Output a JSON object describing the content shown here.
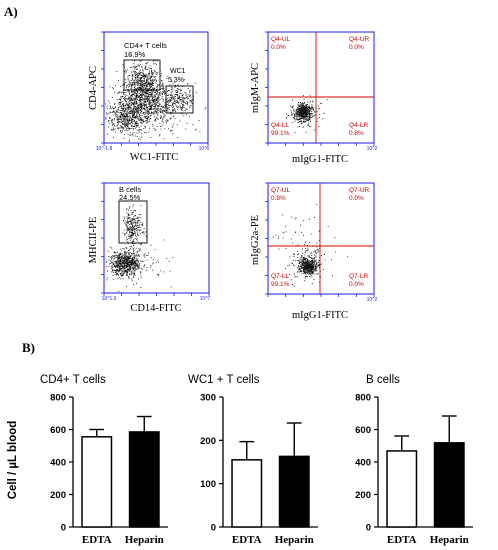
{
  "colors": {
    "flow_axis": "#1a1aff",
    "gate": "#000000",
    "quadrant": "#dd0000",
    "dots": "#111111",
    "bar_axis": "#000000",
    "edta_fill": "#ffffff",
    "heparin_fill": "#000000"
  },
  "panel_a": {
    "label": "A)",
    "plots": [
      {
        "id": "cd4-wc1",
        "type": "scatter-density",
        "y_label": "CD4-APC",
        "x_label": "WC1-FITC",
        "x_tick_labels": [
          "10^-1.8",
          "10^6"
        ],
        "gates": [
          {
            "name": "CD4+ T cells",
            "percent": "16.9%"
          },
          {
            "name": "WC1",
            "percent": "5.3%"
          }
        ]
      },
      {
        "id": "isotype-1",
        "type": "scatter-quadrant",
        "y_label": "mIgM-APC",
        "x_label": "mIgG1-FITC",
        "x_tick_labels": [
          "10^2"
        ],
        "quadrants": [
          {
            "name": "Q4-UL",
            "percent": "0.0%"
          },
          {
            "name": "Q4-UR",
            "percent": "0.0%"
          },
          {
            "name": "Q4-LL",
            "percent": "99.1%"
          },
          {
            "name": "Q4-LR",
            "percent": "0.8%"
          }
        ]
      },
      {
        "id": "mhcii-cd14",
        "type": "scatter-density",
        "y_label": "MHCII-PE",
        "x_label": "CD14-FITC",
        "x_tick_labels": [
          "10^1.9",
          "10^7"
        ],
        "gates": [
          {
            "name": "B cells",
            "percent": "24.5%"
          }
        ]
      },
      {
        "id": "isotype-2",
        "type": "scatter-quadrant",
        "y_label": "mIgG2a-PE",
        "x_label": "mIgG1-FITC",
        "x_tick_labels": [
          "10^2"
        ],
        "quadrants": [
          {
            "name": "Q7-UL",
            "percent": "0.8%"
          },
          {
            "name": "Q7-UR",
            "percent": "0.0%"
          },
          {
            "name": "Q7-LL",
            "percent": "99.1%"
          },
          {
            "name": "Q7-LR",
            "percent": "0.0%"
          }
        ]
      }
    ]
  },
  "panel_b": {
    "label": "B)"
  },
  "chart_data": [
    {
      "type": "bar",
      "title": "CD4+ T cells",
      "ylabel": "Cell / µL blood",
      "categories": [
        "EDTA",
        "Heparin"
      ],
      "values": [
        555,
        585
      ],
      "errors": [
        45,
        95
      ],
      "ylim": [
        0,
        800
      ],
      "yticks": [
        0,
        200,
        400,
        600,
        800
      ],
      "fills": [
        "#ffffff",
        "#000000"
      ]
    },
    {
      "type": "bar",
      "title": "WC1 + T cells",
      "ylabel": "",
      "categories": [
        "EDTA",
        "Heparin"
      ],
      "values": [
        155,
        163
      ],
      "errors": [
        42,
        77
      ],
      "ylim": [
        0,
        300
      ],
      "yticks": [
        0,
        100,
        200,
        300
      ],
      "fills": [
        "#ffffff",
        "#000000"
      ]
    },
    {
      "type": "bar",
      "title": "B cells",
      "ylabel": "",
      "categories": [
        "EDTA",
        "Heparin"
      ],
      "values": [
        468,
        518
      ],
      "errors": [
        92,
        165
      ],
      "ylim": [
        0,
        800
      ],
      "yticks": [
        0,
        200,
        400,
        600,
        800
      ],
      "fills": [
        "#ffffff",
        "#000000"
      ]
    }
  ]
}
